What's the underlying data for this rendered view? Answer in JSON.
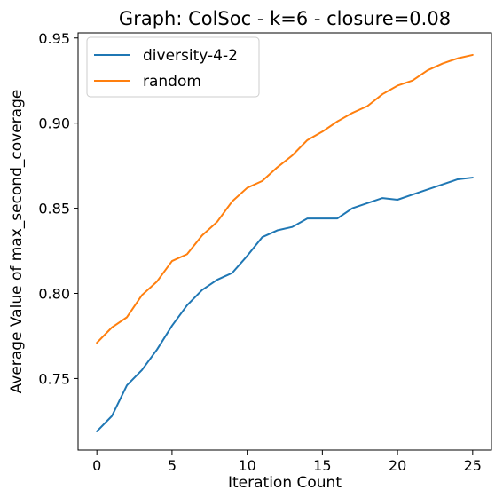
{
  "chart_data": {
    "type": "line",
    "title": "Graph: ColSoc - k=6 - closure=0.08",
    "xlabel": "Iteration Count",
    "ylabel": "Average Value of max_second_coverage",
    "xlim": [
      -1.25,
      26.25
    ],
    "ylim": [
      0.708,
      0.953
    ],
    "xticks": [
      0,
      5,
      10,
      15,
      20,
      25
    ],
    "xtick_labels": [
      "0",
      "5",
      "10",
      "15",
      "20",
      "25"
    ],
    "yticks": [
      0.75,
      0.8,
      0.85,
      0.9,
      0.95
    ],
    "ytick_labels": [
      "0.75",
      "0.80",
      "0.85",
      "0.90",
      "0.95"
    ],
    "grid": false,
    "legend_position": "top-left",
    "x": [
      0,
      1,
      2,
      3,
      4,
      5,
      6,
      7,
      8,
      9,
      10,
      11,
      12,
      13,
      14,
      15,
      16,
      17,
      18,
      19,
      20,
      21,
      22,
      23,
      24,
      25
    ],
    "series": [
      {
        "name": "diversity-4-2",
        "color": "#1f77b4",
        "values": [
          0.719,
          0.728,
          0.746,
          0.755,
          0.767,
          0.781,
          0.793,
          0.802,
          0.808,
          0.812,
          0.822,
          0.833,
          0.837,
          0.839,
          0.844,
          0.844,
          0.844,
          0.85,
          0.853,
          0.856,
          0.855,
          0.858,
          0.861,
          0.864,
          0.867,
          0.868
        ]
      },
      {
        "name": "random",
        "color": "#ff7f0e",
        "values": [
          0.771,
          0.78,
          0.786,
          0.799,
          0.807,
          0.819,
          0.823,
          0.834,
          0.842,
          0.854,
          0.862,
          0.866,
          0.874,
          0.881,
          0.89,
          0.895,
          0.901,
          0.906,
          0.91,
          0.917,
          0.922,
          0.925,
          0.931,
          0.935,
          0.938,
          0.94
        ]
      }
    ]
  }
}
